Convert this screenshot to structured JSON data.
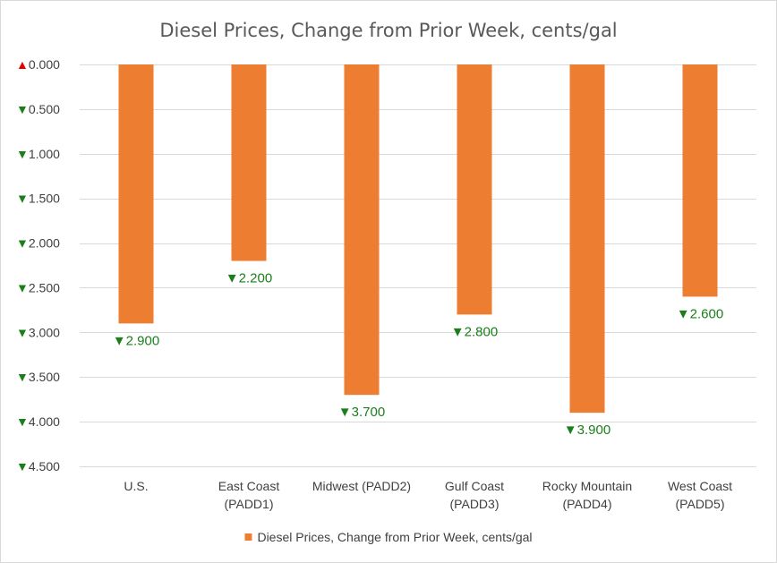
{
  "chart_data": {
    "type": "bar",
    "title": "Diesel Prices, Change from Prior Week, cents/gal",
    "categories": [
      [
        "U.S."
      ],
      [
        "East Coast",
        "(PADD1)"
      ],
      [
        "Midwest (PADD2)"
      ],
      [
        "Gulf Coast",
        "(PADD3)"
      ],
      [
        "Rocky Mountain",
        "(PADD4)"
      ],
      [
        "West Coast",
        "(PADD5)"
      ]
    ],
    "series": [
      {
        "name": "Diesel Prices, Change from Prior Week, cents/gal",
        "values": [
          -2.9,
          -2.2,
          -3.7,
          -2.8,
          -3.9,
          -2.6
        ],
        "data_labels": [
          "▼2.900",
          "▼2.200",
          "▼3.700",
          "▼2.800",
          "▼3.900",
          "▼2.600"
        ]
      }
    ],
    "y_ticks": [
      {
        "value": 0,
        "marker": "▲",
        "label": "0.000"
      },
      {
        "value": -0.5,
        "marker": "▼",
        "label": "0.500"
      },
      {
        "value": -1.0,
        "marker": "▼",
        "label": "1.000"
      },
      {
        "value": -1.5,
        "marker": "▼",
        "label": "1.500"
      },
      {
        "value": -2.0,
        "marker": "▼",
        "label": "2.000"
      },
      {
        "value": -2.5,
        "marker": "▼",
        "label": "2.500"
      },
      {
        "value": -3.0,
        "marker": "▼",
        "label": "3.000"
      },
      {
        "value": -3.5,
        "marker": "▼",
        "label": "3.500"
      },
      {
        "value": -4.0,
        "marker": "▼",
        "label": "4.000"
      },
      {
        "value": -4.5,
        "marker": "▼",
        "label": "4.500"
      }
    ],
    "ylim": [
      -4.5,
      0
    ],
    "grid": true,
    "legend_position": "bottom",
    "xlabel": "",
    "ylabel": "",
    "colors": {
      "bar": "#ed7d31",
      "up_marker": "#e00000",
      "down_marker": "#1a7f1a",
      "data_label": "#1a7f1a",
      "grid": "#d9d9d9",
      "text": "#404040",
      "title": "#595959"
    }
  }
}
